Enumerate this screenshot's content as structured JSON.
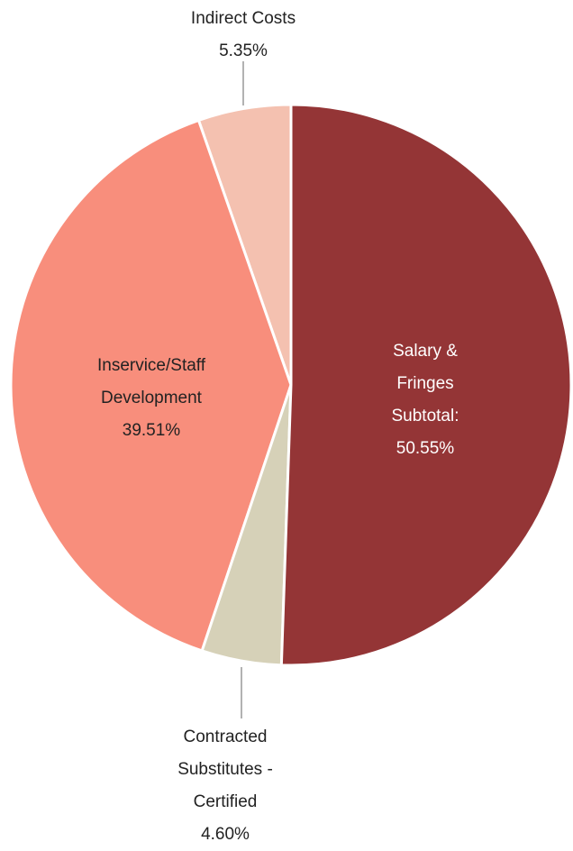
{
  "chart_data": {
    "type": "pie",
    "categories": [
      "Salary & Fringes Subtotal:",
      "Contracted Substitutes - Certified",
      "Inservice/Staff Development",
      "Indirect Costs"
    ],
    "values": [
      50.55,
      4.6,
      39.51,
      5.35
    ],
    "value_labels": [
      "50.55%",
      "4.60%",
      "39.51%",
      "5.35%"
    ],
    "colors": [
      "#943536",
      "#d6d1b8",
      "#f88e7c",
      "#f4c1b0"
    ]
  }
}
